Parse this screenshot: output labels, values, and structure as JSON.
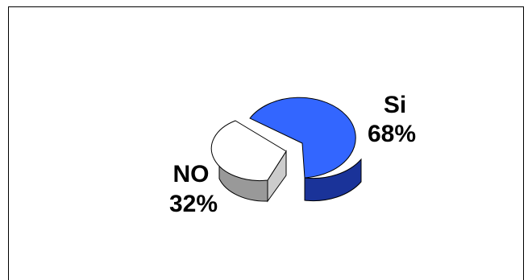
{
  "chart_data": {
    "type": "pie",
    "style": "3d-exploded",
    "slices": [
      {
        "label": "Si",
        "value": 68,
        "value_label": "68%",
        "color": "#3366ff",
        "side_color": "#1a3399"
      },
      {
        "label": "NO",
        "value": 32,
        "value_label": "32%",
        "color": "#ffffff",
        "side_color": "#999999"
      }
    ]
  }
}
